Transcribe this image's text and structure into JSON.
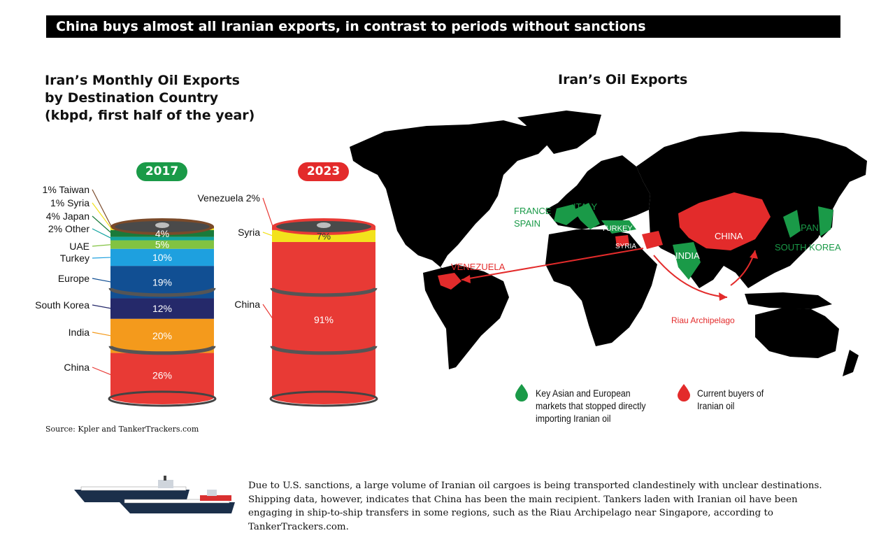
{
  "headline": "China buys almost all Iranian exports, in contrast to periods without sanctions",
  "left_title_lines": [
    "Iran’s Monthly Oil Exports",
    "by Destination Country",
    "(kbpd, first half of the year)"
  ],
  "map_title": "Iran’s Oil Exports",
  "source": "Source: Kpler and TankerTrackers.com",
  "body_text": "Due to U.S. sanctions, a large volume of Iranian oil cargoes is being transported clandestinely with unclear destinations. Shipping data, however, indicates that China has been the main recipient. Tankers laden with Iranian oil have been engaging in ship-to-ship transfers in some regions, such as the Riau Archipelago near Singapore, according to TankerTrackers.com.",
  "map_labels": {
    "france": "FRANCE",
    "spain": "SPAIN",
    "italy": "ITALY",
    "turkey": "TURKEY",
    "syria": "SYRIA",
    "china": "CHINA",
    "india": "INDIA",
    "japan": "JAPAN",
    "south_korea": "SOUTH KOREA",
    "venezuela": "VENEZUELA",
    "riau": "Riau Archipelago"
  },
  "legend": {
    "green": "Key Asian and European markets that stopped directly importing Iranian oil",
    "red": "Current buyers of Iranian oil",
    "green_color": "#1a9a48",
    "red_color": "#e32b2b"
  },
  "chart_data": [
    {
      "type": "bar",
      "title": "2017",
      "stacked": true,
      "unit": "%",
      "categories": [
        "China",
        "India",
        "South Korea",
        "Europe",
        "Turkey",
        "UAE",
        "Other",
        "Japan",
        "Syria",
        "Taiwan"
      ],
      "values": [
        26,
        20,
        12,
        19,
        10,
        5,
        2,
        4,
        1,
        1
      ],
      "colors": [
        "#e83a35",
        "#f49a1c",
        "#25296a",
        "#114f93",
        "#1ea0df",
        "#82c341",
        "#12a3a0",
        "#1a7a3a",
        "#f3e21c",
        "#7a4a2a"
      ],
      "data_labels": [
        "26%",
        "20%",
        "12%",
        "19%",
        "10%",
        "5%",
        "",
        "4%",
        "",
        ""
      ],
      "side_labels": [
        "China",
        "India",
        "South Korea",
        "Europe",
        "Turkey",
        "UAE",
        "2%  Other",
        "4%  Japan",
        "1%  Syria",
        "1% Taiwan"
      ]
    },
    {
      "type": "bar",
      "title": "2023",
      "stacked": true,
      "unit": "%",
      "categories": [
        "China",
        "Syria",
        "Venezuela"
      ],
      "values": [
        91,
        7,
        2
      ],
      "colors": [
        "#e83a35",
        "#f3e21c",
        "#e83a35"
      ],
      "data_labels": [
        "91%",
        "7%",
        ""
      ],
      "side_labels": [
        "China",
        "Syria",
        "Venezuela  2%"
      ]
    }
  ]
}
